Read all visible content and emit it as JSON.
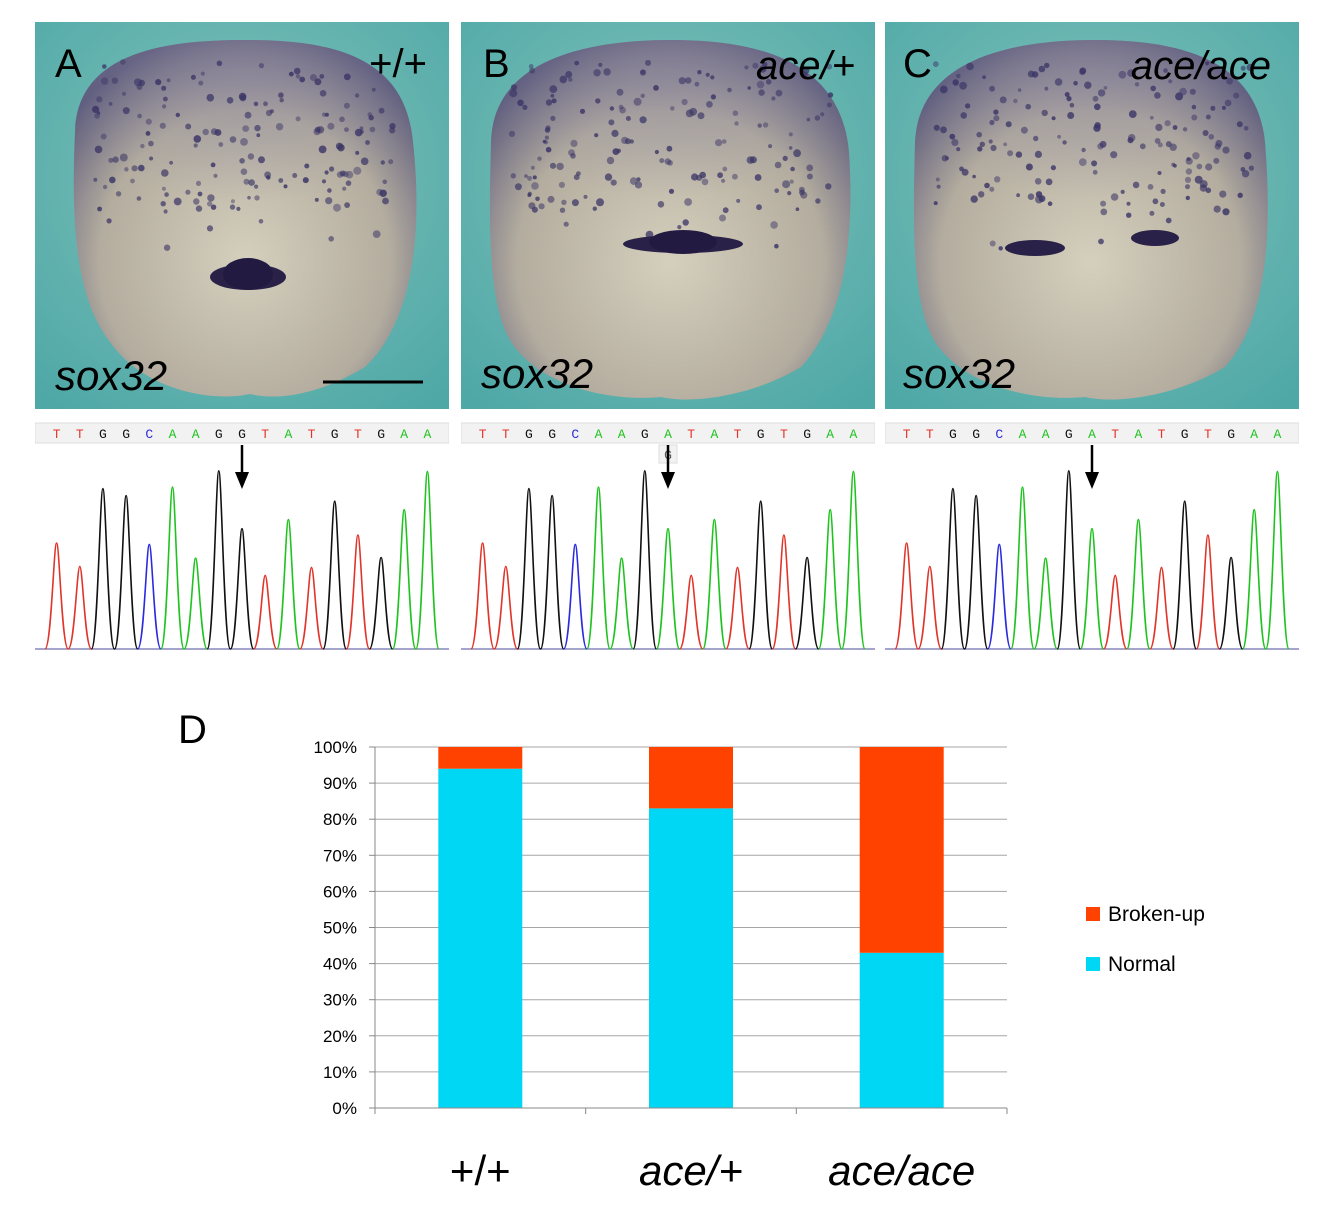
{
  "panels": [
    {
      "letter": "A",
      "genotype": "+/+",
      "gene": "sox32",
      "has_scale_bar": true,
      "sequence": [
        "T",
        "T",
        "G",
        "G",
        "C",
        "A",
        "A",
        "G",
        "G",
        "T",
        "A",
        "T",
        "G",
        "T",
        "G",
        "A",
        "A"
      ],
      "secondary_call": "",
      "arrow_base_index": 8
    },
    {
      "letter": "B",
      "genotype": "ace/+",
      "gene": "sox32",
      "has_scale_bar": false,
      "sequence": [
        "T",
        "T",
        "G",
        "G",
        "C",
        "A",
        "A",
        "G",
        "A",
        "T",
        "A",
        "T",
        "G",
        "T",
        "G",
        "A",
        "A"
      ],
      "secondary_call": "G",
      "arrow_base_index": 8
    },
    {
      "letter": "C",
      "genotype": "ace/ace",
      "gene": "sox32",
      "has_scale_bar": false,
      "sequence": [
        "T",
        "T",
        "G",
        "G",
        "C",
        "A",
        "A",
        "G",
        "A",
        "T",
        "A",
        "T",
        "G",
        "T",
        "G",
        "A",
        "A"
      ],
      "secondary_call": "",
      "arrow_base_index": 8
    }
  ],
  "base_colors": {
    "A": "#1ec31e",
    "C": "#2b2bdd",
    "G": "#111111",
    "T": "#e0352b"
  },
  "chart_label": "D",
  "chart_data": {
    "type": "bar",
    "stacked": true,
    "categories": [
      "+/+",
      "ace/+",
      "ace/ace"
    ],
    "series": [
      {
        "name": "Normal",
        "values": [
          94,
          83,
          43
        ],
        "color": "#00d7f5"
      },
      {
        "name": "Broken-up",
        "values": [
          6,
          17,
          57
        ],
        "color": "#ff4200"
      }
    ],
    "yticks": [
      "0%",
      "10%",
      "20%",
      "30%",
      "40%",
      "50%",
      "60%",
      "70%",
      "80%",
      "90%",
      "100%"
    ],
    "ylim": [
      0,
      100
    ],
    "grid": true,
    "legend": "right",
    "legend_order": [
      "Broken-up",
      "Normal"
    ]
  }
}
